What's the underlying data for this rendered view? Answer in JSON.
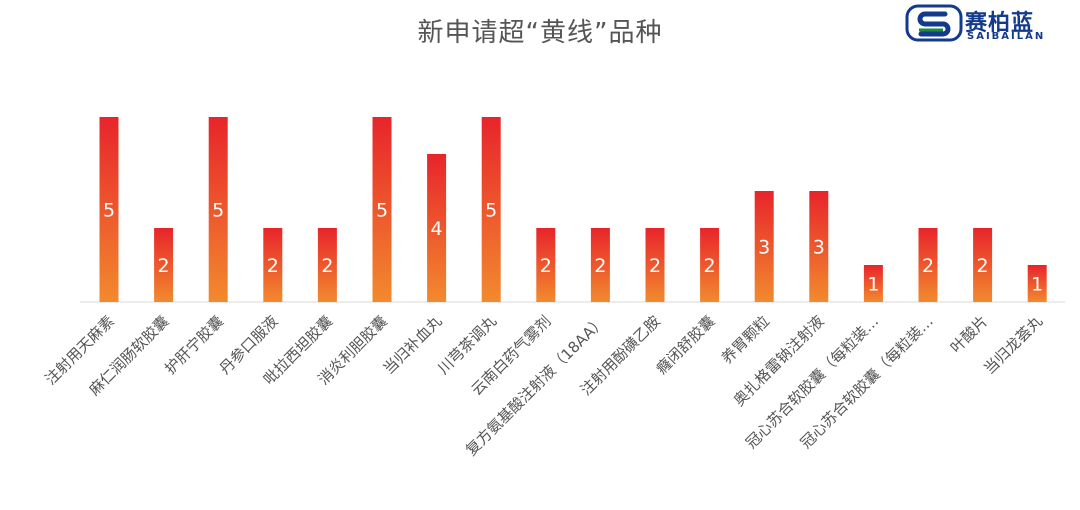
{
  "logo": {
    "cn": "赛柏蓝",
    "en": "SAIBAILAN",
    "colors": {
      "blue": "#143a8c",
      "green": "#1f8a3c"
    }
  },
  "chart_data": {
    "type": "bar",
    "title": "新申请超“黄线”品种",
    "xlabel": "",
    "ylabel": "",
    "ylim": [
      0,
      5
    ],
    "grid": false,
    "legend": "none",
    "bar_gradient": {
      "top": "#e8242b",
      "bottom": "#f28a2e"
    },
    "categories": [
      "注射用天麻素",
      "麻仁润肠软胶囊",
      "护肝宁胶囊",
      "丹参口服液",
      "吡拉西坦胶囊",
      "消炎利胆胶囊",
      "当归补血丸",
      "川芎茶调丸",
      "云南白药气雾剂",
      "复方氨基酸注射液（18AA）",
      "注射用酚磺乙胺",
      "癃闭舒胶囊",
      "养胃颗粒",
      "奥扎格雷钠注射液",
      "冠心苏合软胶囊（每粒装…",
      "冠心苏合软胶囊（每粒装…",
      "叶酸片",
      "当归龙荟丸"
    ],
    "values": [
      5,
      2,
      5,
      2,
      2,
      5,
      4,
      5,
      2,
      2,
      2,
      2,
      3,
      3,
      1,
      2,
      2,
      1
    ]
  }
}
